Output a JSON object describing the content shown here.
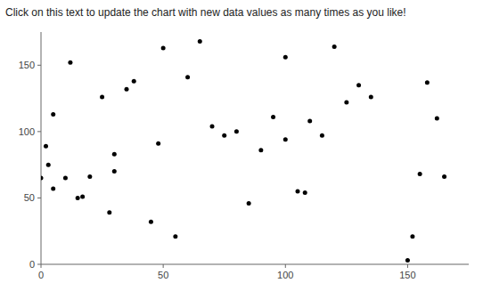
{
  "chart_data": {
    "type": "scatter",
    "title": "Click on this text to update the chart with new data values as many times as you like!",
    "x": [
      0,
      2,
      3,
      5,
      5,
      10,
      12,
      15,
      17,
      20,
      25,
      28,
      30,
      30,
      35,
      38,
      45,
      48,
      50,
      55,
      60,
      65,
      70,
      75,
      80,
      85,
      90,
      95,
      100,
      100,
      105,
      108,
      110,
      115,
      120,
      125,
      130,
      135,
      150,
      152,
      155,
      158,
      162,
      165
    ],
    "values": [
      65,
      89,
      75,
      57,
      113,
      65,
      152,
      50,
      51,
      66,
      126,
      39,
      83,
      70,
      132,
      138,
      32,
      91,
      163,
      21,
      141,
      168,
      104,
      97,
      100,
      46,
      86,
      111,
      94,
      156,
      55,
      54,
      108,
      97,
      164,
      122,
      135,
      126,
      3,
      21,
      68,
      137,
      110,
      66
    ],
    "color": "#000000",
    "xlim": [
      0,
      175
    ],
    "ylim": [
      0,
      175
    ],
    "xticks": [
      0,
      50,
      100,
      150
    ],
    "yticks": [
      0,
      50,
      100,
      150
    ],
    "grid": false
  }
}
